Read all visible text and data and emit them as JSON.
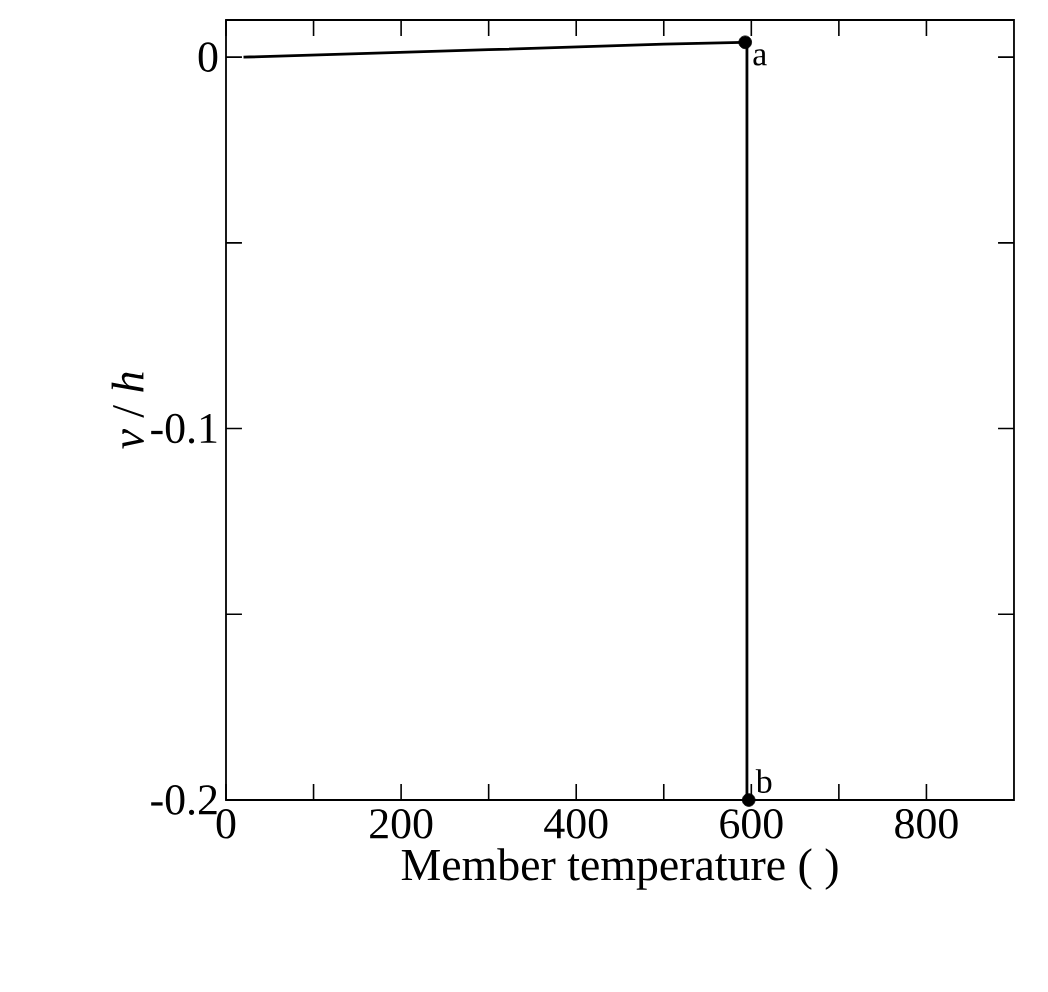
{
  "chart_data": {
    "type": "line",
    "xlabel": "Member temperature (   )",
    "ylabel": "*v* / *h*",
    "series": [
      {
        "color": "#000000",
        "marker": "none",
        "x": [
          20,
          300,
          500,
          590,
          595,
          595
        ],
        "values": [
          0,
          0.002,
          0.0035,
          0.004,
          0.004,
          -0.2
        ]
      },
      {
        "type": "scatter",
        "color": "#000000",
        "x": [
          593,
          597
        ],
        "values": [
          0.004,
          -0.2
        ]
      }
    ],
    "xlim": [
      0,
      900
    ],
    "ylim": [
      -0.2,
      0.01
    ],
    "xticks": [
      0,
      {
        "value": 100,
        "label": null
      },
      200,
      {
        "value": 300,
        "label": null
      },
      400,
      {
        "value": 500,
        "label": null
      },
      600,
      {
        "value": 700,
        "label": null
      },
      800
    ],
    "yticks": [
      -0.2,
      {
        "value": -0.15,
        "label": null
      },
      -0.1,
      {
        "value": -0.05,
        "label": null
      },
      0
    ],
    "annotations": [
      {
        "text": "a",
        "x": 593,
        "y": 0.004
      },
      {
        "text": "b",
        "x": 597,
        "y": -0.2
      }
    ],
    "grid": false,
    "marker": "circle",
    "line_style": "solid"
  }
}
